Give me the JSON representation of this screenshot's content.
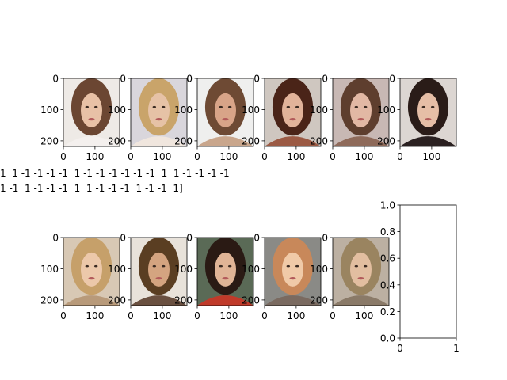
{
  "figure": {
    "label_text": [
      "1  1 -1 -1 -1 -1  1 -1 -1 -1 -1 -1 -1  1  1 -1 -1 -1 -1",
      "1 -1  1 -1 -1 -1  1  1 -1 -1 -1  1 -1 -1  1]"
    ]
  },
  "chart_data": [
    {
      "type": "image",
      "xticks": [
        0,
        100
      ],
      "yticks": [
        0,
        100,
        200
      ],
      "xlim": [
        0,
        178
      ],
      "ylim": [
        218,
        0
      ],
      "subject": "woman-shoulder-brown-hair-light-bg"
    },
    {
      "type": "image",
      "xticks": [
        0,
        100
      ],
      "yticks": [
        0,
        100,
        200
      ],
      "xlim": [
        0,
        178
      ],
      "ylim": [
        218,
        0
      ],
      "subject": "woman-blonde-hair"
    },
    {
      "type": "image",
      "xticks": [
        0,
        100
      ],
      "yticks": [
        0,
        100,
        200
      ],
      "xlim": [
        0,
        178
      ],
      "ylim": [
        218,
        0
      ],
      "subject": "woman-brown-hair-smiling"
    },
    {
      "type": "image",
      "xticks": [
        0,
        100
      ],
      "yticks": [
        0,
        100,
        200
      ],
      "xlim": [
        0,
        178
      ],
      "ylim": [
        218,
        0
      ],
      "subject": "woman-long-auburn-hair"
    },
    {
      "type": "image",
      "xticks": [
        0,
        100
      ],
      "yticks": [
        0,
        100,
        200
      ],
      "xlim": [
        0,
        178
      ],
      "ylim": [
        218,
        0
      ],
      "subject": "woman-brown-hair-pink-lips"
    },
    {
      "type": "image",
      "xticks": [
        0,
        100
      ],
      "yticks": [
        0,
        100,
        200
      ],
      "xlim": [
        0,
        178
      ],
      "ylim": [
        218,
        0
      ],
      "subject": "woman-dark-hair-grey-bg"
    },
    {
      "type": "image",
      "xticks": [
        0,
        100
      ],
      "yticks": [
        0,
        100,
        200
      ],
      "xlim": [
        0,
        178
      ],
      "ylim": [
        218,
        0
      ],
      "subject": "woman-blonde-wavy-hair"
    },
    {
      "type": "image",
      "xticks": [
        0,
        100
      ],
      "yticks": [
        0,
        100,
        200
      ],
      "xlim": [
        0,
        178
      ],
      "ylim": [
        218,
        0
      ],
      "subject": "woman-brown-curly-hair"
    },
    {
      "type": "image",
      "xticks": [
        0,
        100
      ],
      "yticks": [
        0,
        100,
        200
      ],
      "xlim": [
        0,
        178
      ],
      "ylim": [
        218,
        0
      ],
      "subject": "woman-dark-hair-smiling"
    },
    {
      "type": "image",
      "xticks": [
        0,
        100
      ],
      "yticks": [
        0,
        100,
        200
      ],
      "xlim": [
        0,
        178
      ],
      "ylim": [
        218,
        0
      ],
      "subject": "woman-strawberry-blonde"
    },
    {
      "type": "image",
      "xticks": [
        0,
        100
      ],
      "yticks": [
        0,
        100,
        200
      ],
      "xlim": [
        0,
        178
      ],
      "ylim": [
        218,
        0
      ],
      "subject": "woman-ash-blonde-hair"
    },
    {
      "type": "empty",
      "xticks": [
        0,
        1
      ],
      "yticks": [
        0.0,
        0.2,
        0.4,
        0.6,
        0.8,
        1.0
      ],
      "xlim": [
        0,
        1
      ],
      "ylim": [
        0,
        1
      ]
    }
  ]
}
